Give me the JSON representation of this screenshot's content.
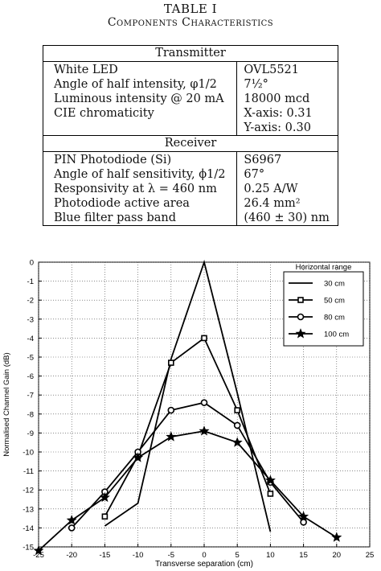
{
  "table": {
    "title": "TABLE I",
    "caption": "Components Characteristics",
    "transmitter_header": "Transmitter",
    "receiver_header": "Receiver",
    "rows": [
      {
        "label": "White LED",
        "value": "OVL5521"
      },
      {
        "label": "Angle of half intensity, φ1/2",
        "value": "7½°"
      },
      {
        "label": "Luminous intensity @ 20 mA",
        "value": "18000 mcd"
      },
      {
        "label": "CIE chromaticity",
        "value": "X-axis: 0.31"
      },
      {
        "label": "",
        "value": "Y-axis: 0.30"
      },
      {
        "label": "PIN Photodiode (Si)",
        "value": "S6967"
      },
      {
        "label": "Angle of half sensitivity, ϕ1/2",
        "value": "67°"
      },
      {
        "label": "Responsivity at λ = 460 nm",
        "value": "0.25 A/W"
      },
      {
        "label": "Photodiode active area",
        "value": "26.4 mm²"
      },
      {
        "label": "Blue filter pass band",
        "value": "(460 ± 30) nm"
      }
    ]
  },
  "chart_data": {
    "type": "line",
    "title": "",
    "xlabel": "Transverse separation (cm)",
    "ylabel": "Normalised Channel Gain (dB)",
    "xlim": [
      -25,
      25
    ],
    "ylim": [
      -15,
      0
    ],
    "xticks": [
      "-25",
      "-20",
      "-15",
      "-10",
      "-5",
      "0",
      "5",
      "10",
      "15",
      "20",
      "25"
    ],
    "yticks": [
      "0",
      "-1",
      "-2",
      "-3",
      "-4",
      "-5",
      "-6",
      "-7",
      "-8",
      "-9",
      "-10",
      "-11",
      "-12",
      "-13",
      "-14",
      "-15"
    ],
    "grid": true,
    "legend_title": "Horizontal range",
    "legend_position": "top-right",
    "series": [
      {
        "name": "30 cm",
        "marker": "none",
        "x": [
          -15,
          -10,
          -5,
          0,
          5,
          10
        ],
        "y": [
          -13.9,
          -12.7,
          -5.1,
          0,
          -6.9,
          -14.2
        ]
      },
      {
        "name": "50 cm",
        "marker": "square",
        "x": [
          -15,
          -10,
          -5,
          0,
          5,
          10
        ],
        "y": [
          -13.4,
          -10.2,
          -5.3,
          -4.0,
          -7.8,
          -12.2
        ]
      },
      {
        "name": "80 cm",
        "marker": "circle",
        "x": [
          -20,
          -15,
          -10,
          -5,
          0,
          5,
          10,
          15
        ],
        "y": [
          -14.0,
          -12.1,
          -10.0,
          -7.8,
          -7.4,
          -8.6,
          -11.6,
          -13.7
        ]
      },
      {
        "name": "100 cm",
        "marker": "star",
        "x": [
          -25,
          -20,
          -15,
          -10,
          -5,
          0,
          5,
          10,
          15,
          20
        ],
        "y": [
          -15.2,
          -13.6,
          -12.4,
          -10.3,
          -9.2,
          -8.9,
          -9.5,
          -11.5,
          -13.4,
          -14.5
        ]
      }
    ]
  }
}
